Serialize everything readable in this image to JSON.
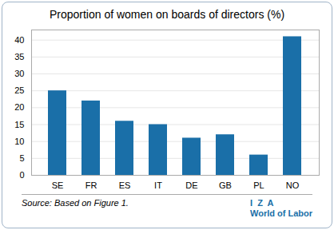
{
  "chart_data": {
    "type": "bar",
    "title": "Proportion of women on boards of directors (%)",
    "categories": [
      "SE",
      "FR",
      "ES",
      "IT",
      "DE",
      "GB",
      "PL",
      "NO"
    ],
    "values": [
      25,
      22,
      16,
      15,
      11,
      12,
      6,
      41
    ],
    "color": "#1a6fa8",
    "ylim": [
      0,
      43
    ],
    "yticks": [
      0,
      5,
      10,
      15,
      20,
      25,
      30,
      35,
      40
    ],
    "grid": true,
    "annotations": [
      "Source: Based on Figure 1.",
      "I  Z  A",
      "World of Labor"
    ]
  }
}
